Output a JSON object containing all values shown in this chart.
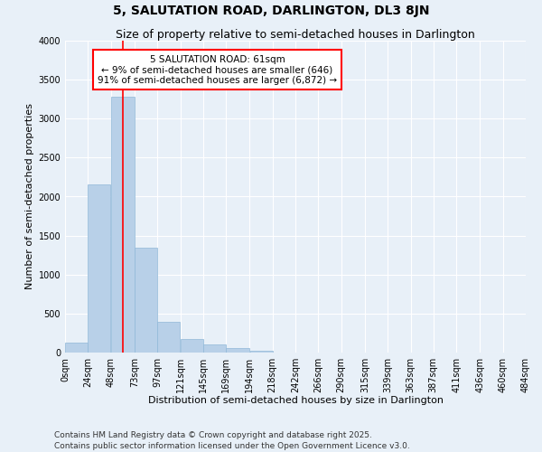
{
  "title": "5, SALUTATION ROAD, DARLINGTON, DL3 8JN",
  "subtitle": "Size of property relative to semi-detached houses in Darlington",
  "xlabel": "Distribution of semi-detached houses by size in Darlington",
  "ylabel": "Number of semi-detached properties",
  "bar_color": "#b8d0e8",
  "bar_edge_color": "#90b8d8",
  "background_color": "#e8f0f8",
  "plot_bg_color": "#e8f0f8",
  "grid_color": "#ffffff",
  "vline_color": "red",
  "vline_x": 61,
  "annotation_text": "5 SALUTATION ROAD: 61sqm\n← 9% of semi-detached houses are smaller (646)\n91% of semi-detached houses are larger (6,872) →",
  "annotation_box_color": "white",
  "annotation_box_edge": "red",
  "bins": [
    0,
    24,
    48,
    73,
    97,
    121,
    145,
    169,
    194,
    218,
    242,
    266,
    290,
    315,
    339,
    363,
    387,
    411,
    436,
    460,
    484
  ],
  "bin_labels": [
    "0sqm",
    "24sqm",
    "48sqm",
    "73sqm",
    "97sqm",
    "121sqm",
    "145sqm",
    "169sqm",
    "194sqm",
    "218sqm",
    "242sqm",
    "266sqm",
    "290sqm",
    "315sqm",
    "339sqm",
    "363sqm",
    "387sqm",
    "411sqm",
    "436sqm",
    "460sqm",
    "484sqm"
  ],
  "bar_heights": [
    130,
    2160,
    3280,
    1340,
    400,
    175,
    100,
    55,
    25,
    5,
    0,
    0,
    0,
    0,
    0,
    0,
    0,
    0,
    0,
    0
  ],
  "ylim": [
    0,
    4000
  ],
  "yticks": [
    0,
    500,
    1000,
    1500,
    2000,
    2500,
    3000,
    3500,
    4000
  ],
  "footer": "Contains HM Land Registry data © Crown copyright and database right 2025.\nContains public sector information licensed under the Open Government Licence v3.0.",
  "title_fontsize": 10,
  "subtitle_fontsize": 9,
  "axis_label_fontsize": 8,
  "tick_fontsize": 7,
  "footer_fontsize": 6.5,
  "annot_fontsize": 7.5
}
